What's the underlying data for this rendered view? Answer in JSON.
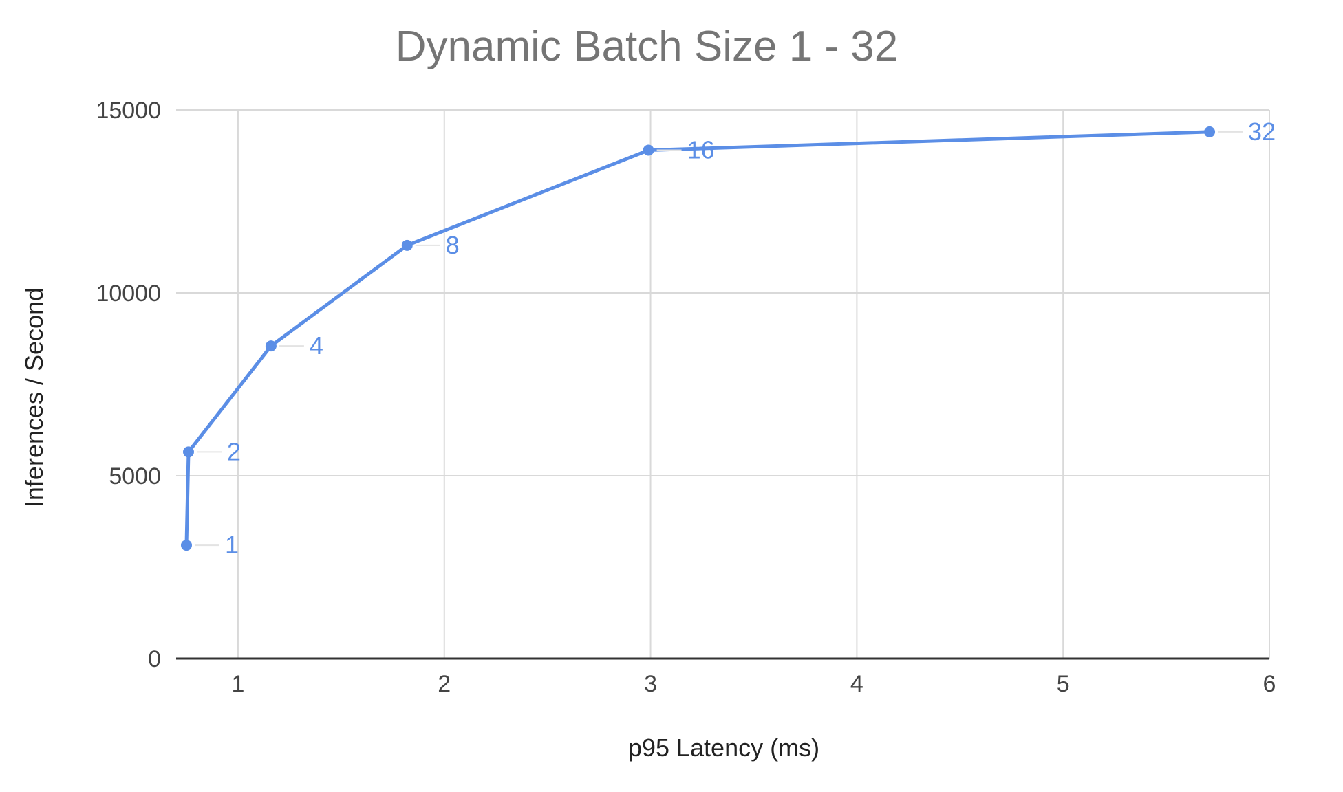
{
  "chart_data": {
    "type": "line",
    "title": "Dynamic Batch Size 1 - 32",
    "xlabel": "p95 Latency (ms)",
    "ylabel": "Inferences / Second",
    "xlim": [
      0.7,
      6
    ],
    "ylim": [
      0,
      15000
    ],
    "x_ticks": [
      1,
      2,
      3,
      4,
      5,
      6
    ],
    "y_ticks": [
      0,
      5000,
      10000,
      15000
    ],
    "grid": true,
    "legend": "none",
    "series": [
      {
        "color": "#5b8ee6",
        "points": [
          {
            "x": 0.75,
            "y": 3100,
            "label": "1"
          },
          {
            "x": 0.76,
            "y": 5650,
            "label": "2"
          },
          {
            "x": 1.16,
            "y": 8550,
            "label": "4"
          },
          {
            "x": 1.82,
            "y": 11300,
            "label": "8"
          },
          {
            "x": 2.99,
            "y": 13900,
            "label": "16"
          },
          {
            "x": 5.71,
            "y": 14400,
            "label": "32"
          }
        ]
      }
    ]
  }
}
